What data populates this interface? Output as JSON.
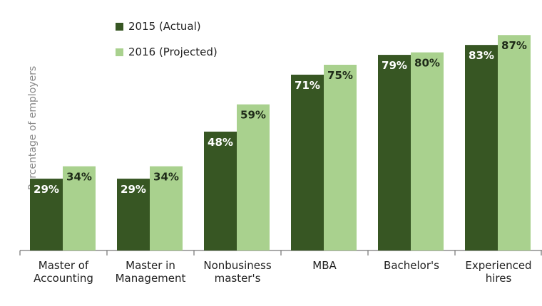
{
  "chart_data": {
    "type": "bar",
    "title": "",
    "xlabel": "",
    "ylabel": "Percentage of employers",
    "ylim": [
      0,
      100
    ],
    "grid": false,
    "legend_position": "top-left",
    "categories": [
      [
        "Master of",
        "Accounting"
      ],
      [
        "Master in",
        "Management"
      ],
      [
        "Nonbusiness",
        "master's"
      ],
      [
        "MBA"
      ],
      [
        "Bachelor's"
      ],
      [
        "Experienced",
        "hires"
      ]
    ],
    "series": [
      {
        "name": "2015 (Actual)",
        "color": "#375623",
        "values": [
          29,
          29,
          48,
          71,
          79,
          83
        ],
        "labels": [
          "29%",
          "29%",
          "48%",
          "71%",
          "79%",
          "83%"
        ]
      },
      {
        "name": "2016 (Projected)",
        "color": "#a9d18e",
        "values": [
          34,
          34,
          59,
          75,
          80,
          87
        ],
        "labels": [
          "34%",
          "34%",
          "59%",
          "75%",
          "80%",
          "87%"
        ]
      }
    ]
  }
}
